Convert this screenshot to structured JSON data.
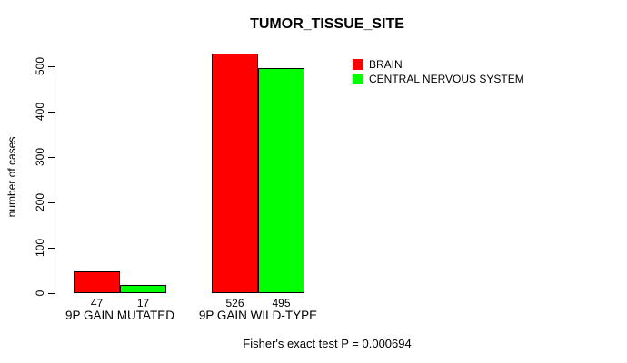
{
  "chart_data": {
    "type": "bar",
    "title": "TUMOR_TISSUE_SITE",
    "ylabel": "number of cases",
    "xlabel": "",
    "categories": [
      "9P GAIN MUTATED",
      "9P GAIN WILD-TYPE"
    ],
    "series": [
      {
        "name": "BRAIN",
        "color": "#ff0000",
        "values": [
          47,
          526
        ]
      },
      {
        "name": "CENTRAL NERVOUS SYSTEM",
        "color": "#00ff00",
        "values": [
          17,
          495
        ]
      }
    ],
    "yticks": [
      0,
      100,
      200,
      300,
      400,
      500
    ],
    "ylim": [
      0,
      526
    ],
    "grid": false,
    "legend_position": "top-right",
    "bar_value_labels": [
      47,
      17,
      526,
      495
    ],
    "bar_border_color": "#000000",
    "background_color": "#ffffff",
    "text_color": "#000000",
    "annotation": "Fisher's exact test P = 0.000694"
  }
}
